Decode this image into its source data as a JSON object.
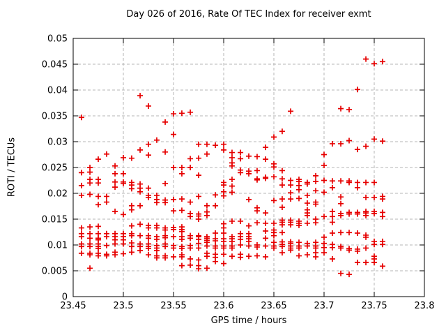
{
  "chart_data": {
    "type": "scatter",
    "title": "Day 026 of 2016, Rate Of TEC Index for receiver exmt",
    "xlabel": "GPS time / hours",
    "ylabel": "ROTI / TECUs",
    "xlim": [
      23.45,
      23.8
    ],
    "ylim": [
      0,
      0.05
    ],
    "xticks": [
      23.45,
      23.5,
      23.55,
      23.6,
      23.65,
      23.7,
      23.75,
      23.8
    ],
    "xtick_labels": [
      "23.45",
      "23.5",
      "23.55",
      "23.6",
      "23.65",
      "23.7",
      "23.75",
      "23.8"
    ],
    "yticks": [
      0,
      0.005,
      0.01,
      0.015,
      0.02,
      0.025,
      0.03,
      0.035,
      0.04,
      0.045,
      0.05
    ],
    "ytick_labels": [
      "0",
      "0.005",
      "0.01",
      "0.015",
      "0.02",
      "0.025",
      "0.03",
      "0.035",
      "0.04",
      "0.045",
      "0.05"
    ],
    "grid": true,
    "legend": "none",
    "marker_shape": "plus",
    "marker_color": "#e60000",
    "grid_color": "#b5b5b5",
    "border_color": "#000000",
    "columns": [
      {
        "t": 23.4583,
        "v": [
          0.0347,
          0.024,
          0.0215,
          0.0196,
          0.0133,
          0.0122,
          0.0116,
          0.0102,
          0.0097,
          0.0084
        ]
      },
      {
        "t": 23.4667,
        "v": [
          0.025,
          0.0241,
          0.0227,
          0.022,
          0.0198,
          0.0135,
          0.0122,
          0.0113,
          0.0102,
          0.0097,
          0.0084,
          0.0081,
          0.0055
        ]
      },
      {
        "t": 23.475,
        "v": [
          0.0266,
          0.0227,
          0.022,
          0.0194,
          0.0178,
          0.0136,
          0.0122,
          0.0113,
          0.011,
          0.0102,
          0.0097,
          0.0093,
          0.0084,
          0.0079
        ]
      },
      {
        "t": 23.4833,
        "v": [
          0.0276,
          0.0194,
          0.0183,
          0.0122,
          0.0116,
          0.0099,
          0.0082,
          0.0079
        ]
      },
      {
        "t": 23.4917,
        "v": [
          0.0253,
          0.0238,
          0.0222,
          0.0212,
          0.0165,
          0.0122,
          0.0116,
          0.011,
          0.0102,
          0.0086,
          0.0081
        ]
      },
      {
        "t": 23.5,
        "v": [
          0.0269,
          0.0238,
          0.0222,
          0.0219,
          0.0159,
          0.0122,
          0.0116,
          0.011,
          0.0102,
          0.0083
        ]
      },
      {
        "t": 23.5083,
        "v": [
          0.0268,
          0.0221,
          0.0216,
          0.0209,
          0.0176,
          0.0168,
          0.0137,
          0.0122,
          0.0118,
          0.0104,
          0.0097,
          0.0086
        ]
      },
      {
        "t": 23.5167,
        "v": [
          0.0389,
          0.0284,
          0.0218,
          0.021,
          0.0203,
          0.0176,
          0.014,
          0.0118,
          0.0102,
          0.0097,
          0.0089
        ]
      },
      {
        "t": 23.525,
        "v": [
          0.0369,
          0.0295,
          0.0274,
          0.021,
          0.0196,
          0.0192,
          0.0138,
          0.0133,
          0.0118,
          0.0113,
          0.0102,
          0.0097,
          0.0093,
          0.0081
        ]
      },
      {
        "t": 23.5333,
        "v": [
          0.0303,
          0.0196,
          0.0188,
          0.0182,
          0.0138,
          0.0133,
          0.0116,
          0.0111,
          0.0099,
          0.0094,
          0.0089,
          0.0079,
          0.0075
        ]
      },
      {
        "t": 23.5417,
        "v": [
          0.0338,
          0.028,
          0.0219,
          0.0187,
          0.0182,
          0.0133,
          0.0129,
          0.0118,
          0.0114,
          0.0102,
          0.0097,
          0.0079,
          0.0075
        ]
      },
      {
        "t": 23.55,
        "v": [
          0.0354,
          0.0314,
          0.025,
          0.0188,
          0.0166,
          0.0134,
          0.013,
          0.0116,
          0.0099,
          0.0094,
          0.0077
        ]
      },
      {
        "t": 23.5583,
        "v": [
          0.0355,
          0.025,
          0.0238,
          0.0189,
          0.0167,
          0.0135,
          0.013,
          0.0126,
          0.0116,
          0.0111,
          0.0097,
          0.0093,
          0.0081,
          0.0077,
          0.006
        ]
      },
      {
        "t": 23.5667,
        "v": [
          0.0357,
          0.0267,
          0.025,
          0.0183,
          0.0161,
          0.0155,
          0.0118,
          0.0113,
          0.0099,
          0.0094,
          0.0073,
          0.0061
        ]
      },
      {
        "t": 23.575,
        "v": [
          0.0295,
          0.0268,
          0.0235,
          0.0194,
          0.016,
          0.0156,
          0.015,
          0.0118,
          0.0116,
          0.0111,
          0.0103,
          0.0094,
          0.0071,
          0.006,
          0.0054
        ]
      },
      {
        "t": 23.5833,
        "v": [
          0.0295,
          0.0276,
          0.0176,
          0.0164,
          0.0157,
          0.0116,
          0.0113,
          0.0109,
          0.0105,
          0.0098,
          0.0084,
          0.0078,
          0.0055
        ]
      },
      {
        "t": 23.5917,
        "v": [
          0.0293,
          0.0197,
          0.0176,
          0.0123,
          0.0112,
          0.0108,
          0.0098,
          0.0094,
          0.0082,
          0.0076,
          0.0068
        ]
      },
      {
        "t": 23.6,
        "v": [
          0.0295,
          0.0284,
          0.0221,
          0.0216,
          0.0203,
          0.0195,
          0.0141,
          0.0133,
          0.0123,
          0.0112,
          0.0107,
          0.0098,
          0.0094,
          0.0082,
          0.0064
        ]
      },
      {
        "t": 23.6083,
        "v": [
          0.0279,
          0.0269,
          0.0259,
          0.0253,
          0.0227,
          0.0214,
          0.0202,
          0.0146,
          0.0116,
          0.0112,
          0.0107,
          0.0098,
          0.0094,
          0.0078
        ]
      },
      {
        "t": 23.6167,
        "v": [
          0.0279,
          0.0267,
          0.0245,
          0.024,
          0.0146,
          0.0122,
          0.0116,
          0.0111,
          0.01,
          0.0082,
          0.0076
        ]
      },
      {
        "t": 23.625,
        "v": [
          0.0272,
          0.0243,
          0.0238,
          0.0188,
          0.0137,
          0.0122,
          0.0116,
          0.0112,
          0.0107,
          0.0098,
          0.0078
        ]
      },
      {
        "t": 23.6333,
        "v": [
          0.0271,
          0.0244,
          0.0228,
          0.0226,
          0.0172,
          0.0166,
          0.0143,
          0.01,
          0.0096,
          0.0079
        ]
      },
      {
        "t": 23.6417,
        "v": [
          0.0289,
          0.0266,
          0.0231,
          0.0229,
          0.0162,
          0.0142,
          0.0127,
          0.0113,
          0.0098,
          0.0077
        ]
      },
      {
        "t": 23.65,
        "v": [
          0.0309,
          0.0257,
          0.0251,
          0.0232,
          0.0186,
          0.0142,
          0.0129,
          0.0124,
          0.0118,
          0.0105,
          0.0098,
          0.0094
        ]
      },
      {
        "t": 23.6583,
        "v": [
          0.032,
          0.0244,
          0.0228,
          0.0216,
          0.0189,
          0.0173,
          0.0148,
          0.0144,
          0.0139,
          0.0124,
          0.0106,
          0.0101,
          0.0097,
          0.0085
        ]
      },
      {
        "t": 23.6667,
        "v": [
          0.0359,
          0.0225,
          0.0216,
          0.0201,
          0.0189,
          0.0148,
          0.0144,
          0.0139,
          0.0106,
          0.0103,
          0.0098,
          0.0094,
          0.009
        ]
      },
      {
        "t": 23.675,
        "v": [
          0.0227,
          0.0223,
          0.0215,
          0.0207,
          0.019,
          0.0146,
          0.0142,
          0.0138,
          0.0105,
          0.0098,
          0.0094,
          0.0079
        ]
      },
      {
        "t": 23.6833,
        "v": [
          0.0221,
          0.0218,
          0.0196,
          0.0181,
          0.0168,
          0.0162,
          0.0157,
          0.0142,
          0.0103,
          0.0098,
          0.0081
        ]
      },
      {
        "t": 23.6917,
        "v": [
          0.0234,
          0.0223,
          0.0205,
          0.0183,
          0.0179,
          0.015,
          0.0143,
          0.0105,
          0.0098,
          0.0094,
          0.0085,
          0.0077
        ]
      },
      {
        "t": 23.7,
        "v": [
          0.0275,
          0.0254,
          0.0225,
          0.0202,
          0.0155,
          0.0115,
          0.0103,
          0.0095,
          0.0085
        ]
      },
      {
        "t": 23.7083,
        "v": [
          0.0296,
          0.0224,
          0.0211,
          0.0165,
          0.0155,
          0.0144,
          0.0123,
          0.0101,
          0.0095,
          0.0073
        ]
      },
      {
        "t": 23.7167,
        "v": [
          0.0364,
          0.0296,
          0.0224,
          0.0193,
          0.018,
          0.0161,
          0.0157,
          0.0124,
          0.0097,
          0.0094,
          0.0045
        ]
      },
      {
        "t": 23.725,
        "v": [
          0.0362,
          0.0302,
          0.0224,
          0.0221,
          0.0163,
          0.016,
          0.0124,
          0.0093,
          0.009,
          0.0043
        ]
      },
      {
        "t": 23.7333,
        "v": [
          0.0401,
          0.0285,
          0.0221,
          0.0211,
          0.0163,
          0.016,
          0.0123,
          0.0092,
          0.0088,
          0.0066
        ]
      },
      {
        "t": 23.7417,
        "v": [
          0.046,
          0.0291,
          0.0221,
          0.0192,
          0.0165,
          0.0162,
          0.0157,
          0.0119,
          0.0115,
          0.0094,
          0.0066
        ]
      },
      {
        "t": 23.75,
        "v": [
          0.0451,
          0.0305,
          0.0221,
          0.0192,
          0.0165,
          0.0161,
          0.0107,
          0.0101,
          0.0078,
          0.0073,
          0.0066
        ]
      },
      {
        "t": 23.7583,
        "v": [
          0.0455,
          0.0301,
          0.0194,
          0.0189,
          0.0163,
          0.0155,
          0.0107,
          0.0101,
          0.0059
        ]
      }
    ]
  }
}
